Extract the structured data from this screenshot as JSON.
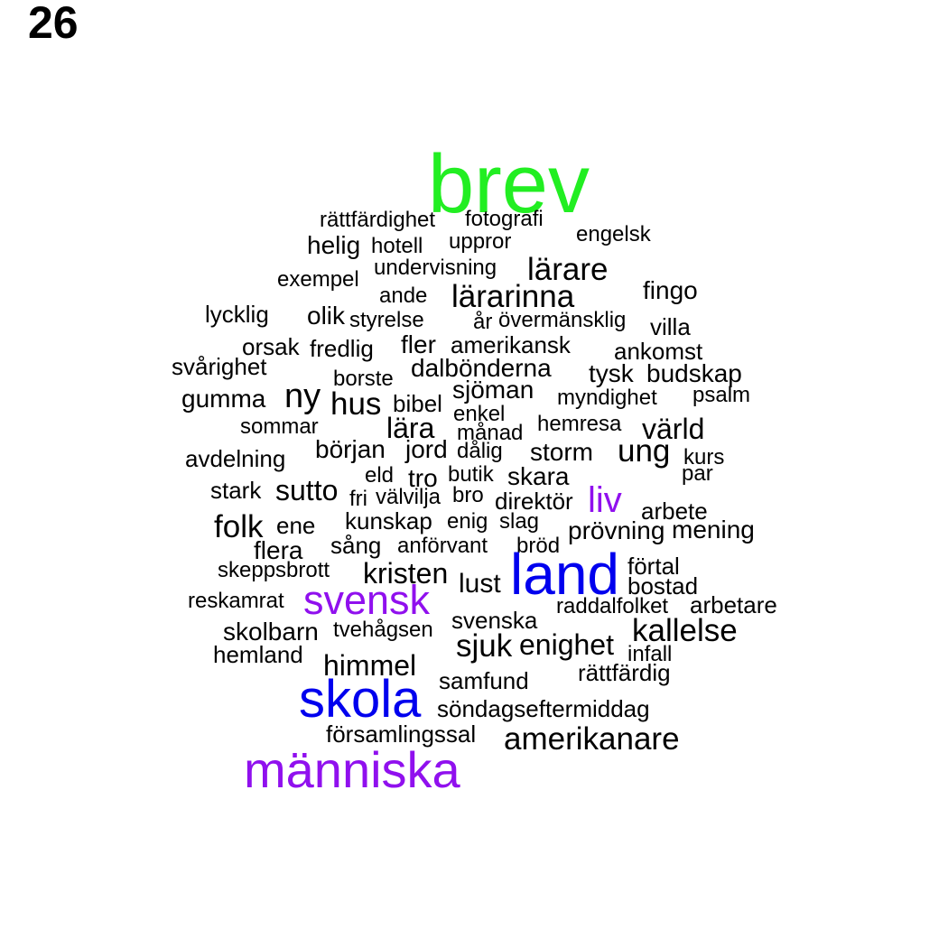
{
  "page_number": "26",
  "colors": {
    "default": "#000000",
    "green": "#22ee22",
    "blue": "#0000ee",
    "purple": "#9010ee"
  },
  "words": [
    {
      "text": "brev",
      "color": "green"
    },
    {
      "text": "rättfärdighet"
    },
    {
      "text": "fotografi"
    },
    {
      "text": "engelsk"
    },
    {
      "text": "helig"
    },
    {
      "text": "hotell"
    },
    {
      "text": "uppror"
    },
    {
      "text": "exempel"
    },
    {
      "text": "undervisning"
    },
    {
      "text": "lärare"
    },
    {
      "text": "fingo"
    },
    {
      "text": "ande"
    },
    {
      "text": "lärarinna"
    },
    {
      "text": "lycklig"
    },
    {
      "text": "olik"
    },
    {
      "text": "styrelse"
    },
    {
      "text": "år"
    },
    {
      "text": "övermänsklig"
    },
    {
      "text": "villa"
    },
    {
      "text": "orsak"
    },
    {
      "text": "fredlig"
    },
    {
      "text": "fler"
    },
    {
      "text": "amerikansk"
    },
    {
      "text": "ankomst"
    },
    {
      "text": "svårighet"
    },
    {
      "text": "borste"
    },
    {
      "text": "dalbönderna"
    },
    {
      "text": "tysk"
    },
    {
      "text": "budskap"
    },
    {
      "text": "gumma"
    },
    {
      "text": "ny"
    },
    {
      "text": "hus"
    },
    {
      "text": "bibel"
    },
    {
      "text": "sjöman"
    },
    {
      "text": "myndighet"
    },
    {
      "text": "psalm"
    },
    {
      "text": "enkel"
    },
    {
      "text": "sommar"
    },
    {
      "text": "lära"
    },
    {
      "text": "månad"
    },
    {
      "text": "hemresa"
    },
    {
      "text": "värld"
    },
    {
      "text": "avdelning"
    },
    {
      "text": "början"
    },
    {
      "text": "jord"
    },
    {
      "text": "dålig"
    },
    {
      "text": "storm"
    },
    {
      "text": "ung"
    },
    {
      "text": "kurs"
    },
    {
      "text": "par"
    },
    {
      "text": "eld"
    },
    {
      "text": "tro"
    },
    {
      "text": "butik"
    },
    {
      "text": "skara"
    },
    {
      "text": "stark"
    },
    {
      "text": "sutto"
    },
    {
      "text": "fri"
    },
    {
      "text": "välvilja"
    },
    {
      "text": "bro"
    },
    {
      "text": "direktör"
    },
    {
      "text": "liv",
      "color": "purple"
    },
    {
      "text": "arbete"
    },
    {
      "text": "folk"
    },
    {
      "text": "ene"
    },
    {
      "text": "kunskap"
    },
    {
      "text": "enig"
    },
    {
      "text": "slag"
    },
    {
      "text": "prövning"
    },
    {
      "text": "mening"
    },
    {
      "text": "flera"
    },
    {
      "text": "sång"
    },
    {
      "text": "anförvant"
    },
    {
      "text": "bröd"
    },
    {
      "text": "skeppsbrott"
    },
    {
      "text": "kristen"
    },
    {
      "text": "lust"
    },
    {
      "text": "land",
      "color": "blue"
    },
    {
      "text": "förtal"
    },
    {
      "text": "bostad"
    },
    {
      "text": "reskamrat"
    },
    {
      "text": "svensk",
      "color": "purple"
    },
    {
      "text": "raddalfolket"
    },
    {
      "text": "arbetare"
    },
    {
      "text": "svenska"
    },
    {
      "text": "skolbarn"
    },
    {
      "text": "tvehågsen"
    },
    {
      "text": "kallelse"
    },
    {
      "text": "hemland"
    },
    {
      "text": "sjuk"
    },
    {
      "text": "enighet"
    },
    {
      "text": "infall"
    },
    {
      "text": "himmel"
    },
    {
      "text": "rättfärdig"
    },
    {
      "text": "samfund"
    },
    {
      "text": "skola",
      "color": "blue"
    },
    {
      "text": "söndagseftermiddag"
    },
    {
      "text": "församlingssal"
    },
    {
      "text": "amerikanare"
    },
    {
      "text": "människa",
      "color": "purple"
    }
  ]
}
